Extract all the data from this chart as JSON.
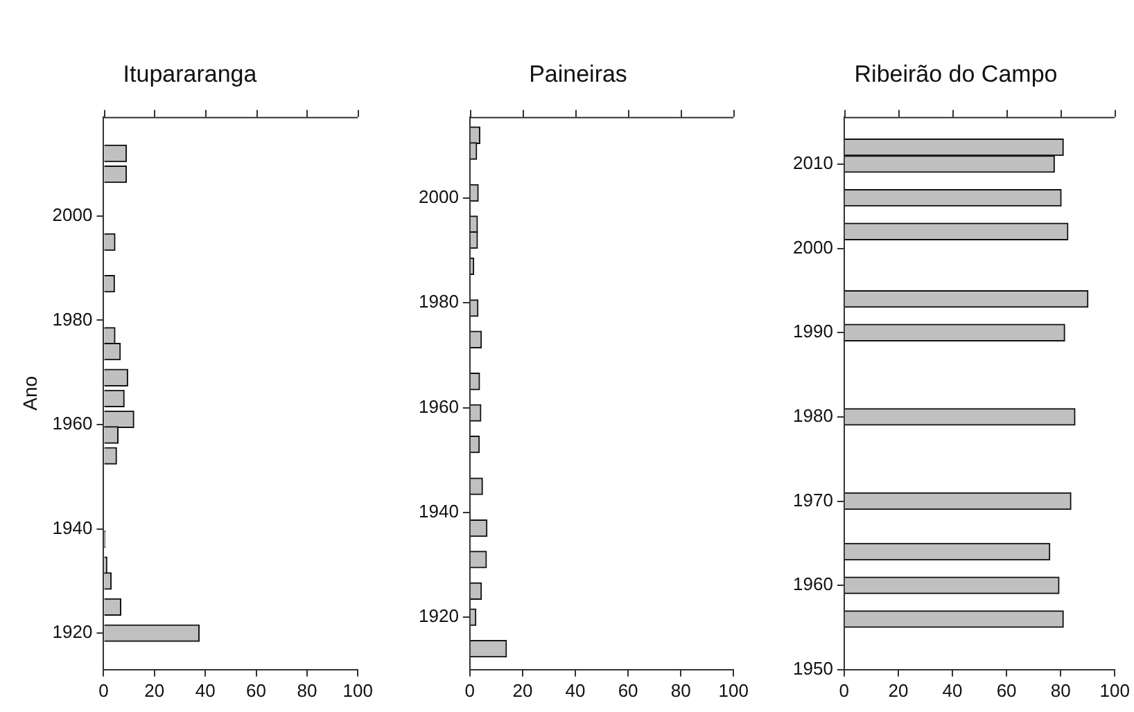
{
  "chart_data": [
    {
      "type": "bar",
      "orientation": "horizontal",
      "title": "Itupararanga",
      "ylabel": "Ano",
      "color": "#c0c0c0",
      "grid": false,
      "x": [
        2012,
        2008,
        1995,
        1987,
        1977,
        1974,
        1969,
        1965,
        1961,
        1958,
        1954,
        1938,
        1933,
        1930,
        1925,
        1920
      ],
      "values": [
        9,
        9,
        4.5,
        4.3,
        4.5,
        6.6,
        9.5,
        8.1,
        11.9,
        5.7,
        5.1,
        0.6,
        1.3,
        3,
        6.8,
        37.6
      ],
      "xlim": [
        0,
        100
      ],
      "xticks": [
        0,
        20,
        40,
        60,
        80,
        100
      ],
      "ylim": [
        1913,
        2019
      ],
      "yticks": [
        1920,
        1940,
        1960,
        1980,
        2000
      ]
    },
    {
      "type": "bar",
      "orientation": "horizontal",
      "title": "Paineiras",
      "color": "#c0c0c0",
      "grid": false,
      "x": [
        2012,
        2009,
        2001,
        1995,
        1992,
        1987,
        1979,
        1973,
        1965,
        1959,
        1953,
        1945,
        1937,
        1931,
        1925,
        1920,
        1914
      ],
      "values": [
        3.8,
        2.6,
        3.2,
        2.9,
        2.9,
        1.5,
        3.1,
        4.4,
        3.7,
        4.2,
        3.6,
        4.8,
        6.5,
        6.3,
        4.4,
        2.3,
        13.9
      ],
      "xlim": [
        0,
        100
      ],
      "xticks": [
        0,
        20,
        40,
        60,
        80,
        100
      ],
      "ylim": [
        1910,
        2015.5
      ],
      "yticks": [
        1920,
        1940,
        1960,
        1980,
        2000
      ]
    },
    {
      "type": "bar",
      "orientation": "horizontal",
      "title": "Ribeirão do Campo",
      "color": "#c0c0c0",
      "grid": false,
      "x": [
        2012,
        2010,
        2006,
        2002,
        1994,
        1990,
        1980,
        1970,
        1964,
        1960,
        1956
      ],
      "values": [
        81,
        77.7,
        80.2,
        82.7,
        90.1,
        81.5,
        85.3,
        83.8,
        76,
        79.4,
        81
      ],
      "xlim": [
        0,
        100
      ],
      "xticks": [
        0,
        20,
        40,
        60,
        80,
        100
      ],
      "ylim": [
        1950,
        2015.6
      ],
      "yticks": [
        1950,
        1960,
        1970,
        1980,
        1990,
        2000,
        2010
      ]
    }
  ]
}
